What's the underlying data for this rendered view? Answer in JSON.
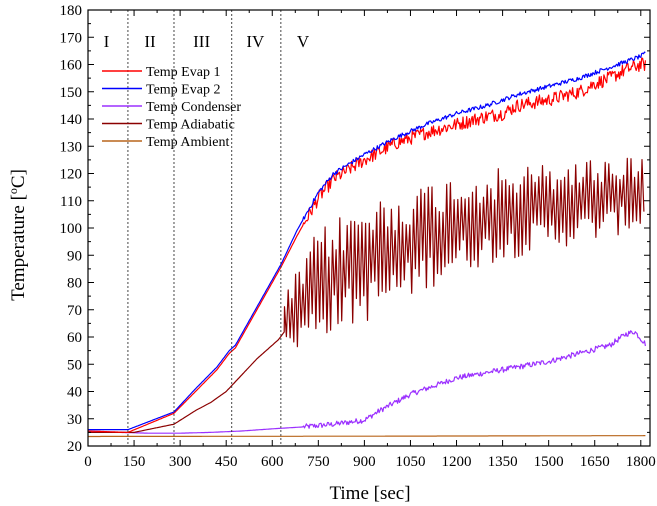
{
  "chart_data": {
    "type": "line",
    "xlabel": "Time [sec]",
    "ylabel_parts": [
      "Temperature [",
      "o",
      "C]"
    ],
    "xlim": [
      0,
      1830
    ],
    "ylim": [
      20,
      180
    ],
    "xticks": [
      0,
      150,
      300,
      450,
      600,
      750,
      900,
      1050,
      1200,
      1350,
      1500,
      1650,
      1800
    ],
    "yticks": [
      20,
      30,
      40,
      50,
      60,
      70,
      80,
      90,
      100,
      110,
      120,
      130,
      140,
      150,
      160,
      170,
      180
    ],
    "legend_position": "upper-left",
    "grid": false,
    "regions": [
      {
        "label": "I",
        "x": 60
      },
      {
        "label": "II",
        "x": 202
      },
      {
        "label": "III",
        "x": 370
      },
      {
        "label": "IV",
        "x": 545
      },
      {
        "label": "V",
        "x": 700
      }
    ],
    "dividers": [
      130,
      280,
      468,
      628
    ],
    "series": [
      {
        "name": "Temp Evap 1",
        "color": "#ff0000",
        "noise": 2.5,
        "x": [
          0,
          130,
          280,
          350,
          420,
          460,
          480,
          520,
          560,
          600,
          630,
          680,
          750,
          800,
          900,
          1000,
          1100,
          1200,
          1300,
          1350,
          1400,
          1500,
          1600,
          1650,
          1700,
          1750,
          1800,
          1815
        ],
        "y": [
          25.5,
          25.0,
          32,
          40,
          48,
          54,
          56,
          64,
          72,
          80,
          86,
          97,
          111,
          118,
          125,
          131,
          135,
          138,
          141,
          142,
          145,
          147,
          150,
          153,
          155,
          158,
          160,
          160
        ]
      },
      {
        "name": "Temp Evap 2",
        "color": "#0000ff",
        "noise": 0.8,
        "x": [
          0,
          130,
          280,
          350,
          420,
          460,
          480,
          520,
          560,
          600,
          630,
          680,
          750,
          800,
          900,
          1000,
          1100,
          1200,
          1300,
          1400,
          1500,
          1600,
          1650,
          1700,
          1750,
          1800,
          1815
        ],
        "y": [
          26,
          26,
          32.5,
          41,
          49,
          55,
          57,
          65,
          73,
          81,
          87,
          99,
          113,
          120,
          127,
          133,
          138,
          142,
          145,
          149,
          152,
          155,
          157,
          159,
          161,
          163,
          164
        ]
      },
      {
        "name": "Temp Condenser",
        "color": "#9b30ff",
        "noise": 1.0,
        "x": [
          0,
          100,
          200,
          300,
          400,
          500,
          600,
          700,
          800,
          900,
          950,
          1000,
          1050,
          1100,
          1200,
          1300,
          1400,
          1500,
          1600,
          1700,
          1750,
          1780,
          1815
        ],
        "y": [
          25.5,
          25,
          24.7,
          24.7,
          25,
          25.5,
          26.3,
          27,
          28,
          29.5,
          33,
          36,
          39,
          41,
          45,
          47,
          49,
          51,
          54,
          57,
          61,
          62,
          57.5
        ]
      },
      {
        "name": "Temp Adiabatic",
        "color": "#8b0000",
        "noise": 0,
        "x": [
          0,
          150,
          280,
          350,
          400,
          450,
          500,
          550,
          600,
          620,
          640
        ],
        "y": [
          25,
          25,
          28,
          33,
          36,
          40,
          46,
          52,
          57,
          59,
          62
        ],
        "osc": {
          "start": 640,
          "end": 1815,
          "step": 6,
          "low": [
            [
              640,
              52
            ],
            [
              750,
              60
            ],
            [
              900,
              65
            ],
            [
              1050,
              74
            ],
            [
              1200,
              83
            ],
            [
              1350,
              88
            ],
            [
              1500,
              92
            ],
            [
              1650,
              95
            ],
            [
              1815,
              100
            ]
          ],
          "high": [
            [
              640,
              75
            ],
            [
              750,
              100
            ],
            [
              900,
              110
            ],
            [
              1050,
              115
            ],
            [
              1200,
              120
            ],
            [
              1350,
              122
            ],
            [
              1500,
              124
            ],
            [
              1650,
              126
            ],
            [
              1815,
              128
            ]
          ]
        }
      },
      {
        "name": "Temp Ambient",
        "color": "#b8651b",
        "noise": 0,
        "x": [
          0,
          900,
          1815
        ],
        "y": [
          23.5,
          23.6,
          23.8
        ]
      }
    ]
  }
}
